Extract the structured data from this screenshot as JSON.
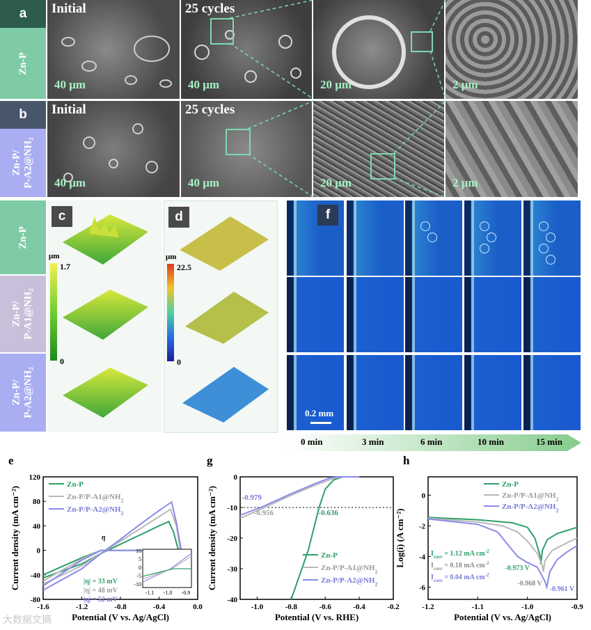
{
  "panels": {
    "a": {
      "letter": "a",
      "row_label": "Zn-P",
      "images": [
        {
          "label": "Initial",
          "scale": "40 μm"
        },
        {
          "label": "25 cycles",
          "scale": "40 μm"
        },
        {
          "label": "",
          "scale": "20 μm"
        },
        {
          "label": "",
          "scale": "2 μm"
        }
      ]
    },
    "b": {
      "letter": "b",
      "row_label_1": "Zn-P/",
      "row_label_2": "P-A2@NH₂",
      "images": [
        {
          "label": "Initial",
          "scale": "40 μm"
        },
        {
          "label": "25 cycles",
          "scale": "40 μm"
        },
        {
          "label": "",
          "scale": "20 μm"
        },
        {
          "label": "",
          "scale": "2 μm"
        }
      ]
    },
    "cdf_rows": [
      {
        "label_1": "Zn-P",
        "label_2": ""
      },
      {
        "label_1": "Zn-P/",
        "label_2": "P-A1@NH₂"
      },
      {
        "label_1": "Zn-P/",
        "label_2": "P-A2@NH₂"
      }
    ],
    "c": {
      "letter": "c",
      "unit": "μm",
      "max": "1.7",
      "min": "0"
    },
    "d": {
      "letter": "d",
      "unit": "μm",
      "max": "22.5",
      "min": "0"
    },
    "f": {
      "letter": "f",
      "scale": "0.2 mm",
      "times": [
        "0 min",
        "3 min",
        "6 min",
        "10 min",
        "15 min"
      ]
    }
  },
  "chart_data": [
    {
      "panel": "e",
      "type": "line",
      "xlabel": "Potential (V vs. Ag/AgCl)",
      "ylabel": "Current density (mA cm⁻²)",
      "xlim": [
        -1.6,
        0.0
      ],
      "ylim": [
        -80,
        120
      ],
      "xticks": [
        "-1.6",
        "-1.2",
        "-0.8",
        "-0.4",
        "0.0"
      ],
      "yticks": [
        "-80",
        "-40",
        "0",
        "40",
        "80",
        "120"
      ],
      "series": [
        {
          "name": "Zn-P",
          "color": "#2e9e6a",
          "x": [
            -1.6,
            -1.2,
            -1.0,
            -0.8,
            -0.6,
            -0.4,
            -0.3,
            -0.25,
            -0.2,
            -0.4,
            -0.8,
            -1.0,
            -1.2,
            -1.6
          ],
          "y": [
            -45,
            -22,
            -5,
            10,
            25,
            40,
            47,
            30,
            0,
            0,
            0,
            0,
            -12,
            -40
          ]
        },
        {
          "name": "Zn-P/P-A1@NH₂",
          "color": "#b8b8b8",
          "x": [
            -1.6,
            -1.2,
            -1.0,
            -0.8,
            -0.6,
            -0.4,
            -0.28,
            -0.22,
            -0.18,
            -0.4,
            -0.8,
            -1.0,
            -1.2,
            -1.6
          ],
          "y": [
            -55,
            -25,
            -5,
            15,
            35,
            55,
            67,
            40,
            0,
            0,
            0,
            0,
            -14,
            -50
          ]
        },
        {
          "name": "Zn-P/P-A2@NH₂",
          "color": "#8a8ae8",
          "x": [
            -1.6,
            -1.2,
            -1.0,
            -0.8,
            -0.6,
            -0.4,
            -0.27,
            -0.22,
            -0.17,
            -0.4,
            -0.8,
            -1.0,
            -1.2,
            -1.6
          ],
          "y": [
            -65,
            -30,
            -5,
            18,
            42,
            65,
            79,
            45,
            0,
            0,
            0,
            0,
            -16,
            -58
          ]
        }
      ],
      "annotations": [
        "|η| = 33 mV",
        "|η| = 48 mV",
        "|η| = 52 mV",
        "η"
      ],
      "inset": {
        "xticks": [
          "-1.1",
          "-1.0",
          "-0.9"
        ],
        "yticks": [
          "10",
          "5",
          "0",
          "-5",
          "-10"
        ]
      }
    },
    {
      "panel": "g",
      "type": "line",
      "xlabel": "Potential (V vs. RHE)",
      "ylabel": "Current density (mA cm⁻²)",
      "xlim": [
        -1.1,
        -0.2
      ],
      "ylim": [
        -40,
        0
      ],
      "xticks": [
        "-1.0",
        "-0.8",
        "-0.6",
        "-0.4",
        "-0.2"
      ],
      "yticks": [
        "0",
        "-10",
        "-20",
        "-30",
        "-40"
      ],
      "reference_line": -10,
      "series": [
        {
          "name": "Zn-P",
          "color": "#2e9e6a",
          "x": [
            -0.8,
            -0.7,
            -0.636,
            -0.6,
            -0.55,
            -0.5,
            -0.4
          ],
          "y": [
            -40,
            -24,
            -10,
            -4,
            -1,
            0,
            0
          ]
        },
        {
          "name": "Zn-P/P-A1@NH₂",
          "color": "#b8b8b8",
          "x": [
            -1.1,
            -0.956,
            -0.8,
            -0.65,
            -0.55,
            -0.5,
            -0.4
          ],
          "y": [
            -13.5,
            -10,
            -6,
            -2.5,
            -0.5,
            0,
            0
          ]
        },
        {
          "name": "Zn-P/P-A2@NH₂",
          "color": "#8a8ae8",
          "x": [
            -1.1,
            -0.979,
            -0.8,
            -0.65,
            -0.57,
            -0.52,
            -0.4
          ],
          "y": [
            -12.5,
            -10,
            -5.5,
            -2,
            -0.3,
            0,
            0
          ]
        }
      ],
      "annotations": [
        "-0.979",
        "-0.956",
        "-0.636"
      ]
    },
    {
      "panel": "h",
      "type": "line",
      "xlabel": "Potential (V vs. Ag/AgCl)",
      "ylabel": "Log(i) (A cm⁻²)",
      "xlim": [
        -1.2,
        -0.9
      ],
      "ylim": [
        -6.8,
        1.2
      ],
      "xticks": [
        "-1.2",
        "-1.1",
        "-1.0",
        "-0.9"
      ],
      "yticks": [
        "0",
        "-2",
        "-4",
        "-6"
      ],
      "series": [
        {
          "name": "Zn-P",
          "color": "#2e9e6a",
          "x": [
            -1.2,
            -1.1,
            -1.03,
            -1.0,
            -0.985,
            -0.975,
            -0.973,
            -0.97,
            -0.96,
            -0.94,
            -0.92,
            -0.9
          ],
          "y": [
            -1.45,
            -1.6,
            -1.8,
            -2.1,
            -2.8,
            -3.9,
            -4.5,
            -3.6,
            -2.9,
            -2.5,
            -2.3,
            -2.1
          ]
        },
        {
          "name": "Zn-P/P-A1@NH₂",
          "color": "#b8b8b8",
          "x": [
            -1.2,
            -1.1,
            -1.05,
            -1.02,
            -1.0,
            -0.98,
            -0.97,
            -0.968,
            -0.965,
            -0.95,
            -0.92,
            -0.9
          ],
          "y": [
            -1.5,
            -1.75,
            -2.0,
            -2.4,
            -3.0,
            -3.8,
            -4.6,
            -5.0,
            -4.3,
            -3.6,
            -3.1,
            -2.8
          ]
        },
        {
          "name": "Zn-P/P-A2@NH₂",
          "color": "#8a8ae8",
          "x": [
            -1.2,
            -1.1,
            -1.06,
            -1.04,
            -1.02,
            -1.0,
            -0.98,
            -0.965,
            -0.961,
            -0.955,
            -0.94,
            -0.92,
            -0.9
          ],
          "y": [
            -1.55,
            -1.9,
            -2.4,
            -3.2,
            -4.0,
            -4.4,
            -4.7,
            -5.6,
            -6.0,
            -5.0,
            -4.2,
            -3.7,
            -3.3
          ]
        }
      ],
      "annotations": [
        "-0.973 V",
        "-0.968 V",
        "-0.961 V"
      ],
      "icorr": [
        "I",
        "corr",
        "= 1.12 mA cm",
        "-2",
        "= 0.18 mA cm",
        "= 0.04 mA cm"
      ]
    }
  ],
  "legend": {
    "zn_p": "Zn-P",
    "a1_pre": "Zn-P/P-A1@NH",
    "a2_pre": "Zn-P/P-A2@NH",
    "sub2": "2"
  },
  "watermark": "大数据文摘"
}
